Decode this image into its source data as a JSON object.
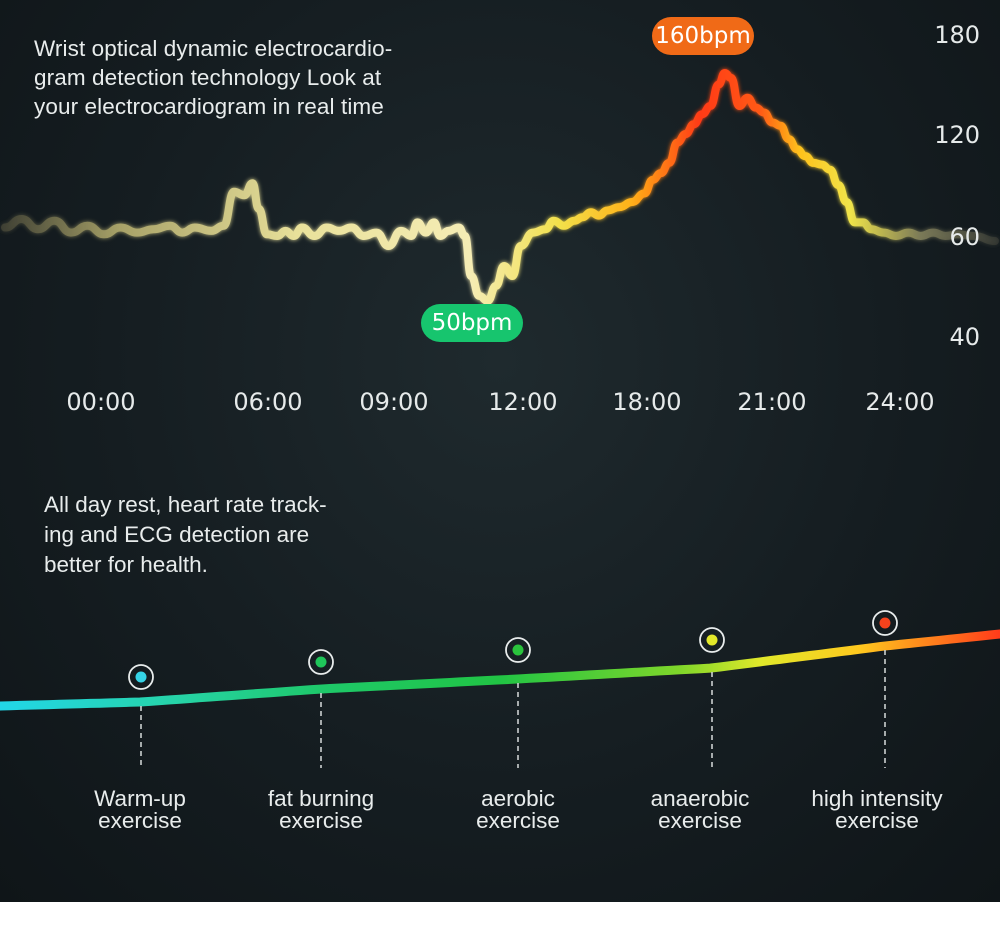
{
  "intro_text": "Wrist optical dynamic electrocardio- gram detection technology Look at your electrocardiogram in real time",
  "intro_lines": [
    "Wrist optical dynamic electrocardio-",
    "gram detection technology Look at",
    "your electrocardiogram in real time"
  ],
  "rest_lines": [
    "All day rest, heart rate track-",
    "ing and ECG detection are",
    "better for health."
  ],
  "colors": {
    "background": "#161f23",
    "peak_badge": "#f06a17",
    "low_badge": "#17c56e",
    "line_low": "#e8e2a0",
    "line_mid": "#f2e34a",
    "line_high": "#ff3b12"
  },
  "chart_data": [
    {
      "type": "line",
      "x_ticks": [
        "00:00",
        "06:00",
        "09:00",
        "12:00",
        "18:00",
        "21:00",
        "24:00"
      ],
      "y_ticks": [
        "180",
        "120",
        "60",
        "40"
      ],
      "annotations": {
        "peak": "160bpm",
        "low": "50bpm"
      },
      "series": [
        {
          "values": [
            {
              "t": 0.0,
              "v": 65
            },
            {
              "t": 0.4,
              "v": 70
            },
            {
              "t": 0.8,
              "v": 64
            },
            {
              "t": 1.2,
              "v": 69
            },
            {
              "t": 1.6,
              "v": 62
            },
            {
              "t": 2.0,
              "v": 66
            },
            {
              "t": 2.4,
              "v": 61
            },
            {
              "t": 2.8,
              "v": 65
            },
            {
              "t": 3.2,
              "v": 62
            },
            {
              "t": 3.6,
              "v": 64
            },
            {
              "t": 4.0,
              "v": 66
            },
            {
              "t": 4.3,
              "v": 62
            },
            {
              "t": 4.6,
              "v": 65
            },
            {
              "t": 5.0,
              "v": 63
            },
            {
              "t": 5.3,
              "v": 66
            },
            {
              "t": 5.55,
              "v": 86
            },
            {
              "t": 5.8,
              "v": 84
            },
            {
              "t": 6.0,
              "v": 91
            },
            {
              "t": 6.15,
              "v": 76
            },
            {
              "t": 6.35,
              "v": 61
            },
            {
              "t": 6.6,
              "v": 60
            },
            {
              "t": 6.8,
              "v": 63
            },
            {
              "t": 7.0,
              "v": 60
            },
            {
              "t": 7.2,
              "v": 65
            },
            {
              "t": 7.5,
              "v": 60
            },
            {
              "t": 7.8,
              "v": 65
            },
            {
              "t": 8.1,
              "v": 63
            },
            {
              "t": 8.4,
              "v": 65
            },
            {
              "t": 8.7,
              "v": 60
            },
            {
              "t": 9.0,
              "v": 62
            },
            {
              "t": 9.3,
              "v": 58
            },
            {
              "t": 9.6,
              "v": 63
            },
            {
              "t": 9.85,
              "v": 60
            },
            {
              "t": 10.0,
              "v": 68
            },
            {
              "t": 10.2,
              "v": 62
            },
            {
              "t": 10.4,
              "v": 68
            },
            {
              "t": 10.55,
              "v": 60
            },
            {
              "t": 10.75,
              "v": 63
            },
            {
              "t": 11.0,
              "v": 65
            },
            {
              "t": 11.15,
              "v": 60
            },
            {
              "t": 11.3,
              "v": 52
            },
            {
              "t": 11.5,
              "v": 48
            },
            {
              "t": 11.7,
              "v": 47
            },
            {
              "t": 11.9,
              "v": 50
            },
            {
              "t": 12.1,
              "v": 54
            },
            {
              "t": 12.3,
              "v": 52
            },
            {
              "t": 12.5,
              "v": 58
            },
            {
              "t": 12.8,
              "v": 62
            },
            {
              "t": 13.1,
              "v": 64
            },
            {
              "t": 13.3,
              "v": 69
            },
            {
              "t": 13.55,
              "v": 66
            },
            {
              "t": 13.8,
              "v": 69
            },
            {
              "t": 14.0,
              "v": 71
            },
            {
              "t": 14.2,
              "v": 74
            },
            {
              "t": 14.4,
              "v": 72
            },
            {
              "t": 14.6,
              "v": 75
            },
            {
              "t": 14.9,
              "v": 77
            },
            {
              "t": 15.2,
              "v": 80
            },
            {
              "t": 15.5,
              "v": 85
            },
            {
              "t": 15.7,
              "v": 93
            },
            {
              "t": 15.9,
              "v": 97
            },
            {
              "t": 16.1,
              "v": 103
            },
            {
              "t": 16.3,
              "v": 115
            },
            {
              "t": 16.5,
              "v": 120
            },
            {
              "t": 16.7,
              "v": 126
            },
            {
              "t": 16.9,
              "v": 132
            },
            {
              "t": 17.1,
              "v": 137
            },
            {
              "t": 17.3,
              "v": 150
            },
            {
              "t": 17.45,
              "v": 157
            },
            {
              "t": 17.6,
              "v": 154
            },
            {
              "t": 17.8,
              "v": 137
            },
            {
              "t": 18.0,
              "v": 142
            },
            {
              "t": 18.2,
              "v": 136
            },
            {
              "t": 18.4,
              "v": 133
            },
            {
              "t": 18.6,
              "v": 127
            },
            {
              "t": 18.8,
              "v": 125
            },
            {
              "t": 19.0,
              "v": 117
            },
            {
              "t": 19.2,
              "v": 111
            },
            {
              "t": 19.4,
              "v": 107
            },
            {
              "t": 19.6,
              "v": 103
            },
            {
              "t": 19.8,
              "v": 102
            },
            {
              "t": 20.0,
              "v": 99
            },
            {
              "t": 20.2,
              "v": 90
            },
            {
              "t": 20.4,
              "v": 80
            },
            {
              "t": 20.6,
              "v": 68
            },
            {
              "t": 20.8,
              "v": 68
            },
            {
              "t": 21.0,
              "v": 64
            },
            {
              "t": 21.3,
              "v": 62
            },
            {
              "t": 21.6,
              "v": 60
            },
            {
              "t": 21.9,
              "v": 62
            },
            {
              "t": 22.2,
              "v": 60
            },
            {
              "t": 22.5,
              "v": 62
            },
            {
              "t": 22.8,
              "v": 60
            },
            {
              "t": 23.1,
              "v": 61
            },
            {
              "t": 23.5,
              "v": 60
            },
            {
              "t": 24.0,
              "v": 59
            }
          ]
        }
      ]
    },
    {
      "type": "line",
      "categories": [
        "Warm-up exercise",
        "fat burning exercise",
        "aerobic exercise",
        "anaerobic exercise",
        "high intensity exercise"
      ],
      "category_lines": [
        [
          "Warm-up",
          "exercise"
        ],
        [
          "fat burning",
          "exercise"
        ],
        [
          "aerobic",
          "exercise"
        ],
        [
          "anaerobic",
          "exercise"
        ],
        [
          "high intensity",
          "exercise"
        ]
      ],
      "marker_colors": [
        "#35d3e6",
        "#1fc65a",
        "#2ac43d",
        "#e2e82a",
        "#f5421c"
      ]
    }
  ]
}
